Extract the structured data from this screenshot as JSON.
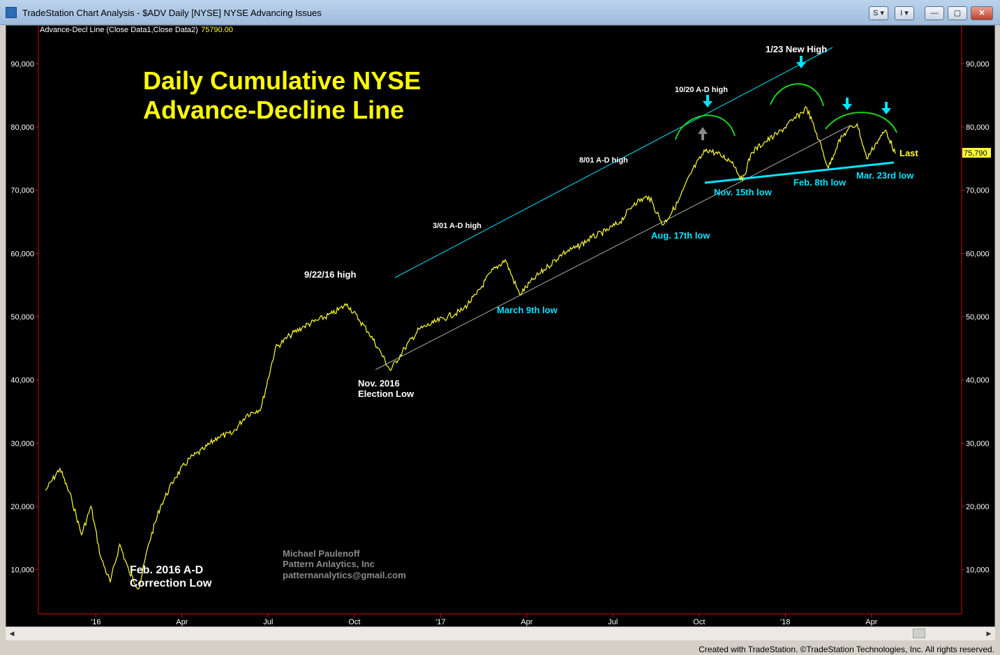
{
  "window": {
    "title": "TradeStation Chart Analysis - $ADV Daily [NYSE] NYSE Advancing Issues",
    "buttons": [
      "S",
      "I"
    ],
    "controls": {
      "minimize": "—",
      "maximize": "▢",
      "close": "✕"
    }
  },
  "footer": {
    "credit": "Created with TradeStation. ©TradeStation Technologies, Inc. All rights reserved."
  },
  "indicator": {
    "label": "Advance-Decl Line (Close Data1,Close Data2)",
    "value": "75790.00"
  },
  "last_value_badge": "75,790",
  "chart_title": [
    "Daily Cumulative NYSE",
    "Advance-Decline Line"
  ],
  "watermark": [
    "Michael Paulenoff",
    "Pattern Anlaytics, Inc",
    "patternanalytics@gmail.com"
  ],
  "annotations": {
    "feb2016": [
      "Feb. 2016 A-D",
      "Correction Low"
    ],
    "high_9_22": "9/22/16 high",
    "nov2016": [
      "Nov. 2016",
      "Election Low"
    ],
    "high_3_01": "3/01 A-D high",
    "march9": "March 9th low",
    "high_8_01": "8/01 A-D high",
    "aug17": "Aug. 17th low",
    "high_10_20": "10/20 A-D high",
    "nov15": "Nov. 15th low",
    "new_high_1_23": "1/23 New High",
    "feb8": "Feb. 8th low",
    "mar23": "Mar. 23rd low",
    "last": "Last"
  },
  "colors": {
    "line": "#ffff33",
    "trend_cyan": "#00e5ff",
    "support_gray": "#aaaaaa",
    "arcs": "#19d419",
    "title": "#ffff00",
    "axis": "#d41010"
  },
  "chart_data": {
    "type": "line",
    "title": "Daily Cumulative NYSE Advance-Decline Line",
    "ylim": [
      3000,
      96000
    ],
    "yticks": [
      10000,
      20000,
      30000,
      40000,
      50000,
      60000,
      70000,
      80000,
      90000
    ],
    "ytick_labels": [
      "10,000",
      "20,000",
      "30,000",
      "40,000",
      "50,000",
      "60,000",
      "70,000",
      "80,000",
      "90,000"
    ],
    "xlabels": [
      "'16",
      "Apr",
      "Jul",
      "Oct",
      "'17",
      "Apr",
      "Jul",
      "Oct",
      "'18",
      "Apr"
    ],
    "xlabel_dates": [
      "2016-01",
      "2016-04",
      "2016-07",
      "2016-10",
      "2017-01",
      "2017-04",
      "2017-07",
      "2017-10",
      "2018-01",
      "2018-04"
    ],
    "x_start": "2015-11",
    "x_end": "2018-05",
    "series": [
      {
        "name": "",
        "points": [
          [
            "2015-11",
            22500
          ],
          [
            "2015-11",
            26000
          ],
          [
            "2015-12",
            21000
          ],
          [
            "2015-12",
            15500
          ],
          [
            "2015-12",
            20000
          ],
          [
            "2016-01",
            12000
          ],
          [
            "2016-01",
            8000
          ],
          [
            "2016-01",
            14000
          ],
          [
            "2016-02",
            9500
          ],
          [
            "2016-02",
            7000
          ],
          [
            "2016-02",
            14000
          ],
          [
            "2016-03",
            20000
          ],
          [
            "2016-03",
            24500
          ],
          [
            "2016-04",
            27500
          ],
          [
            "2016-04",
            29000
          ],
          [
            "2016-05",
            31000
          ],
          [
            "2016-05",
            31500
          ],
          [
            "2016-06",
            34500
          ],
          [
            "2016-06",
            35500
          ],
          [
            "2016-07",
            45000
          ],
          [
            "2016-07",
            47000
          ],
          [
            "2016-08",
            48500
          ],
          [
            "2016-08",
            49500
          ],
          [
            "2016-09",
            50500
          ],
          [
            "2016-09",
            52000
          ],
          [
            "2016-10",
            49500
          ],
          [
            "2016-10",
            47500
          ],
          [
            "2016-10",
            45000
          ],
          [
            "2016-11",
            41500
          ],
          [
            "2016-11",
            45000
          ],
          [
            "2016-12",
            48000
          ],
          [
            "2016-12",
            49000
          ],
          [
            "2017-01",
            50000
          ],
          [
            "2017-01",
            51000
          ],
          [
            "2017-02",
            53500
          ],
          [
            "2017-02",
            57000
          ],
          [
            "2017-03",
            59000
          ],
          [
            "2017-03",
            53500
          ],
          [
            "2017-04",
            56000
          ],
          [
            "2017-04",
            58000
          ],
          [
            "2017-05",
            60000
          ],
          [
            "2017-05",
            61000
          ],
          [
            "2017-06",
            62500
          ],
          [
            "2017-06",
            63500
          ],
          [
            "2017-07",
            65000
          ],
          [
            "2017-07",
            68000
          ],
          [
            "2017-08",
            69000
          ],
          [
            "2017-08",
            64500
          ],
          [
            "2017-09",
            68000
          ],
          [
            "2017-09",
            73000
          ],
          [
            "2017-10",
            76500
          ],
          [
            "2017-10",
            75500
          ],
          [
            "2017-11",
            74500
          ],
          [
            "2017-11",
            71500
          ],
          [
            "2017-11",
            76000
          ],
          [
            "2017-12",
            77500
          ],
          [
            "2017-12",
            79000
          ],
          [
            "2018-01",
            81000
          ],
          [
            "2018-01",
            83000
          ],
          [
            "2018-02",
            78000
          ],
          [
            "2018-02",
            73500
          ],
          [
            "2018-02",
            77500
          ],
          [
            "2018-03",
            79500
          ],
          [
            "2018-03",
            80500
          ],
          [
            "2018-03",
            75000
          ],
          [
            "2018-04",
            77500
          ],
          [
            "2018-04",
            79500
          ],
          [
            "2018-04",
            75790
          ]
        ]
      }
    ]
  }
}
